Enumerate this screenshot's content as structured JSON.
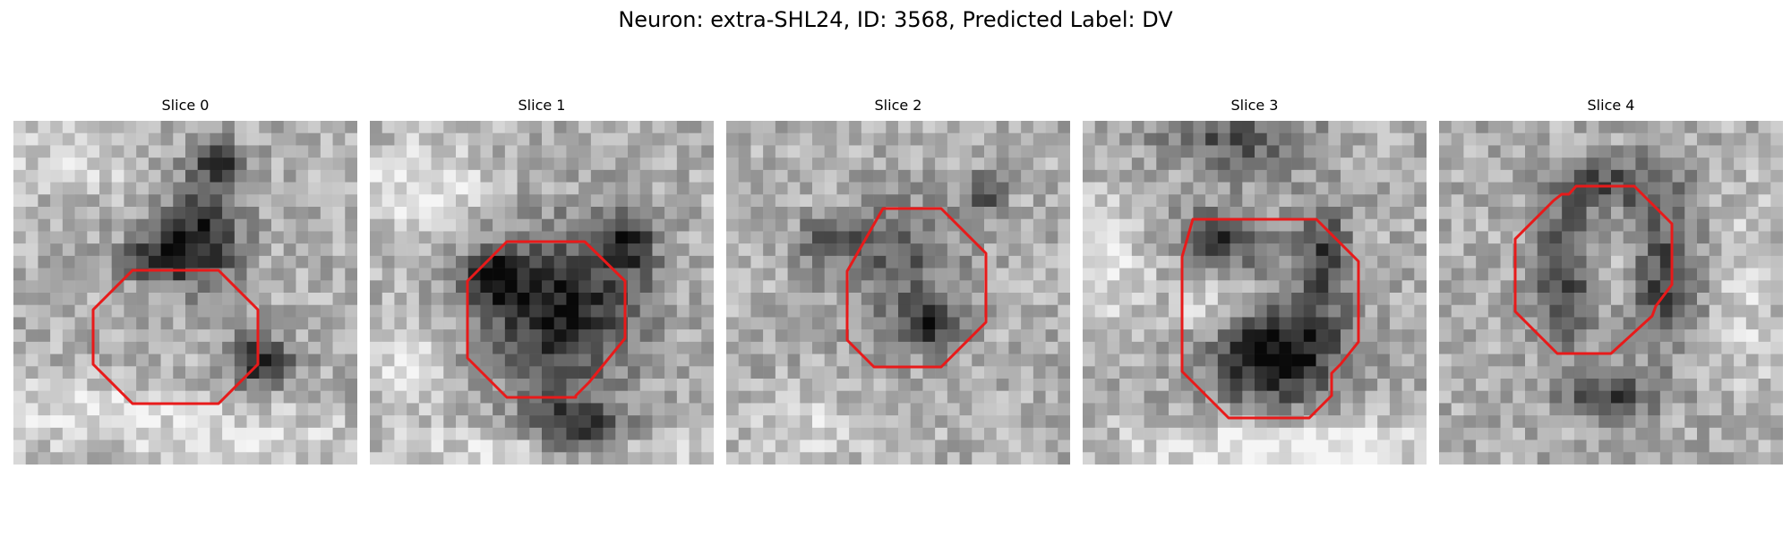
{
  "figure": {
    "title": "Neuron: extra-SHL24, ID: 3568, Predicted Label: DV"
  },
  "contour_color": "#e81a1a",
  "slices": [
    {
      "label": "Slice 0"
    },
    {
      "label": "Slice 1"
    },
    {
      "label": "Slice 2"
    },
    {
      "label": "Slice 3"
    },
    {
      "label": "Slice 4"
    }
  ]
}
